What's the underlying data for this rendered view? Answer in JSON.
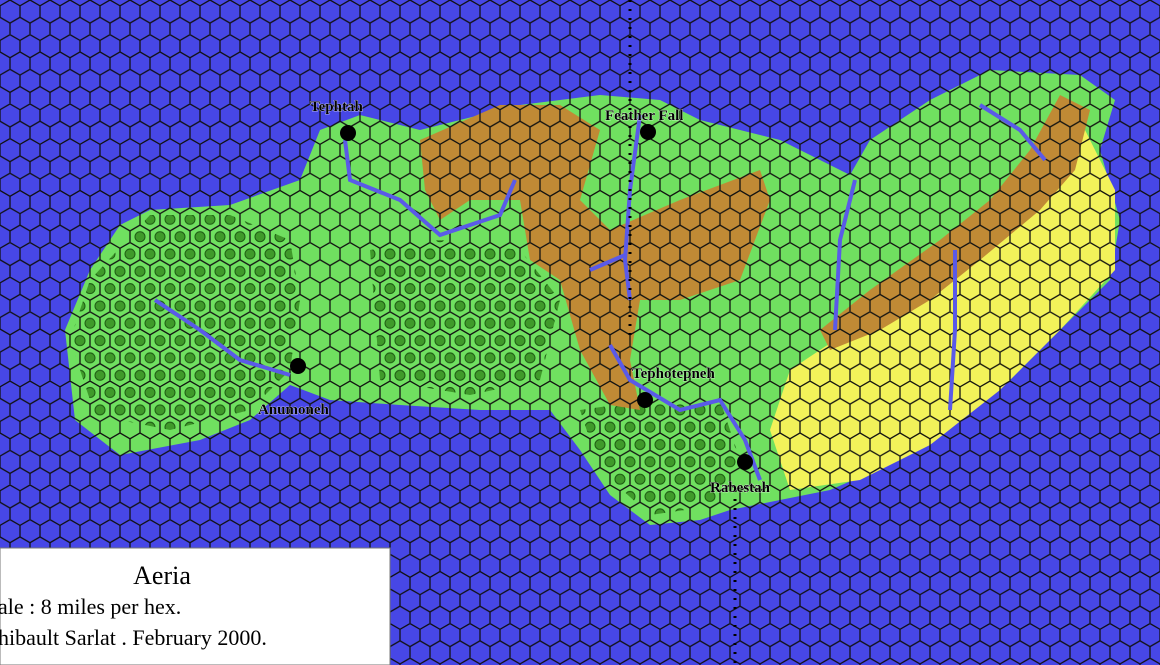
{
  "map": {
    "legend": {
      "title": "Aeria",
      "scale": "ale : 8 miles per hex.",
      "credit": "hibault Sarlat . February 2000."
    },
    "places": [
      {
        "label": "Tephtah"
      },
      {
        "label": "Feather Fall"
      },
      {
        "label": "Anumoneh"
      },
      {
        "label": "Tephotepneh"
      },
      {
        "label": "Rabestah"
      }
    ]
  }
}
